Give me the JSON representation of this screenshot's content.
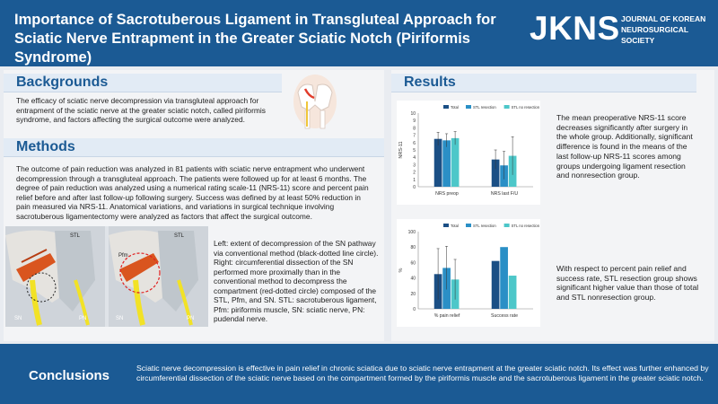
{
  "header": {
    "title_line1": "Importance of Sacrotuberous Ligament in Transgluteal Approach for",
    "title_line2": "Sciatic Nerve Entrapment in the Greater Sciatic Notch (Piriformis Syndrome)",
    "logo": "JKNS",
    "logo_sub": [
      "JOURNAL OF KOREAN",
      "NEUROSURGICAL",
      "SOCIETY"
    ]
  },
  "backgrounds": {
    "heading": "Backgrounds",
    "text": "The efficacy of sciatic nerve decompression via transgluteal approach for entrapment of the sciatic nerve at the greater sciatic notch, called piriformis syndrome, and factors affecting the surgical outcome were analyzed."
  },
  "methods": {
    "heading": "Methods",
    "text": "The outcome of pain reduction was analyzed in 81 patients with sciatic nerve entrapment who underwent decompression through a transgluteal approach. The patients were followed up for at least 6 months. The degree of pain reduction was analyzed using a numerical rating scale-11 (NRS-11) score and percent pain relief before and after last follow-up following surgery. Success was defined by at least 50% reduction in pain measured via NRS-11.  Anatomical variations, and variations in surgical technique involving sacrotuberous ligamentectomy were analyzed as factors that affect the surgical outcome.",
    "figure_labels": {
      "stl_left": "STL",
      "stl_right": "STL",
      "pfm": "Pfm",
      "sn_left": "SN",
      "pn_left": "PN",
      "sn_right": "SN",
      "pn_right": "PN"
    },
    "caption": "Left: extent of decompression of the SN pathway via conventional method (black-dotted line circle). Right: circumferential dissection of the SN performed more proximally than in the conventional method to decompress the compartment (red-dotted circle) composed of the STL, Pfm, and SN. STL: sacrotuberous ligament, Pfm: piriformis muscle, SN: sciatic nerve, PN: pudendal nerve."
  },
  "results": {
    "heading": "Results",
    "text1": "The mean preoperative NRS-11 score decreases significantly after surgery in the whole group. Additionally, significant difference is found in the means of the last follow-up NRS-11 scores among groups undergoing ligament resection and nonresection group.",
    "text2": "With respect to percent pain relief and success rate, STL resection group shows significant higher value than those of total and STL nonresection group."
  },
  "colors": {
    "total": "#1b4f85",
    "stl_resection": "#2a8fc6",
    "stl_no_resection": "#4dc7c9",
    "brand": "#1b5a94"
  },
  "chart_data": [
    {
      "type": "bar",
      "categories": [
        "NRS preop",
        "NRS last F/U"
      ],
      "series": [
        {
          "name": "Total",
          "values": [
            6.5,
            3.7
          ],
          "err": [
            0.9,
            1.3
          ]
        },
        {
          "name": "STL resection",
          "values": [
            6.3,
            2.9
          ],
          "err": [
            0.9,
            1.9
          ]
        },
        {
          "name": "STL no resection",
          "values": [
            6.6,
            4.2
          ],
          "err": [
            0.9,
            2.6
          ]
        }
      ],
      "ylabel": "NRS-11",
      "ylim": [
        0,
        10
      ],
      "yticks": [
        0,
        1,
        2,
        3,
        4,
        5,
        6,
        7,
        8,
        9,
        10
      ],
      "legend": "top"
    },
    {
      "type": "bar",
      "categories": [
        "% pain relief",
        "Success rate"
      ],
      "series": [
        {
          "name": "Total",
          "values": [
            45,
            62
          ],
          "err": [
            33,
            0
          ]
        },
        {
          "name": "STL resection",
          "values": [
            53,
            80
          ],
          "err": [
            28,
            0
          ]
        },
        {
          "name": "STL no resection",
          "values": [
            38,
            43
          ],
          "err": [
            26,
            0
          ]
        }
      ],
      "ylabel": "%",
      "ylim": [
        0,
        100
      ],
      "yticks": [
        0,
        20,
        40,
        60,
        80,
        100
      ],
      "legend": "top"
    }
  ],
  "conclusions": {
    "heading": "Conclusions",
    "text": "Sciatic nerve decompression is effective in pain relief in chronic sciatica due to sciatic nerve entrapment at the greater sciatic notch. Its effect was further enhanced by circumferential dissection of the sciatic nerve based on the compartment formed by the piriformis muscle and the sacrotuberous ligament in the greater sciatic notch."
  }
}
